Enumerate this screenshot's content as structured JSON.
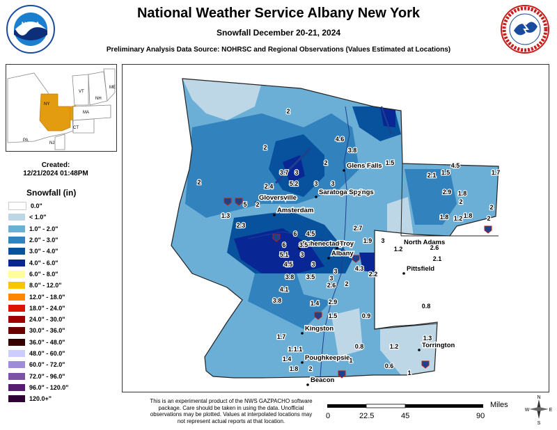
{
  "title": "National Weather Service Albany New York",
  "subtitle": "Snowfall December 20-21, 2024",
  "source": "Preliminary Analysis Data Source: NOHRSC and Regional Observations (Values Estimated at Locations)",
  "created": {
    "label": "Created:",
    "datetime": "12/21/2024 01:48PM"
  },
  "legend": {
    "title": "Snowfall (in)",
    "items": [
      {
        "label": "0.0\"",
        "color": "#ffffff"
      },
      {
        "label": "< 1.0\"",
        "color": "#bdd7e7"
      },
      {
        "label": "1.0\" - 2.0\"",
        "color": "#6baed6"
      },
      {
        "label": "2.0\" - 3.0\"",
        "color": "#3182bd"
      },
      {
        "label": "3.0\" - 4.0\"",
        "color": "#08519c"
      },
      {
        "label": "4.0\" - 6.0\"",
        "color": "#082694"
      },
      {
        "label": "6.0\" - 8.0\"",
        "color": "#ffff96"
      },
      {
        "label": "8.0\" - 12.0\"",
        "color": "#ffc400"
      },
      {
        "label": "12.0\" - 18.0\"",
        "color": "#ff8700"
      },
      {
        "label": "18.0\" - 24.0\"",
        "color": "#db1400"
      },
      {
        "label": "24.0\" - 30.0\"",
        "color": "#9e0000"
      },
      {
        "label": "30.0\" - 36.0\"",
        "color": "#690000"
      },
      {
        "label": "36.0\" - 48.0\"",
        "color": "#360000"
      },
      {
        "label": "48.0\" - 60.0\"",
        "color": "#ccccff"
      },
      {
        "label": "60.0\" - 72.0\"",
        "color": "#9f8cd8"
      },
      {
        "label": "72.0\" - 96.0\"",
        "color": "#7c52a5"
      },
      {
        "label": "96.0\" - 120.0\"",
        "color": "#561c72"
      },
      {
        "label": "120.0+\"",
        "color": "#2e0033"
      }
    ]
  },
  "inset": {
    "states": [
      "VT",
      "NH",
      "ME",
      "NY",
      "MA",
      "CT",
      "PA",
      "NJ"
    ]
  },
  "disclaimer": "This is an experimental product of the NWS GAZPACHO software package. Care should be taken in using the data. Unofficial observations may be plotted. Values at interpolated locations may not represent actual reports at that location.",
  "scale": {
    "ticks": [
      "0",
      "22.5",
      "45",
      "90"
    ],
    "unit": "Miles"
  },
  "compass": {
    "n": "N",
    "s": "S",
    "e": "E",
    "w": "W"
  },
  "cities": [
    {
      "name": "Glens Falls"
    },
    {
      "name": "Saratoga Springs"
    },
    {
      "name": "Gloversville"
    },
    {
      "name": "Amsterdam"
    },
    {
      "name": "Schenectady"
    },
    {
      "name": "Troy"
    },
    {
      "name": "Albany"
    },
    {
      "name": "North Adams"
    },
    {
      "name": "Pittsfield"
    },
    {
      "name": "Kingston"
    },
    {
      "name": "Poughkeepsie"
    },
    {
      "name": "Beacon"
    },
    {
      "name": "Torrington"
    }
  ],
  "values": [
    "2",
    "2",
    "2",
    "4.6",
    "3.8",
    "2",
    "1.5",
    "3.7",
    "3",
    "5.2",
    "3",
    "3",
    "2.4",
    "2",
    "5",
    "2",
    "1.3",
    "2.3",
    "6",
    "4.5",
    "6",
    "3.5",
    "2.7",
    "1.9",
    "3",
    "5.1",
    "3",
    "4.3",
    "4.5",
    "3",
    "3",
    "2.2",
    "3.8",
    "3.5",
    "3",
    "4.1",
    "2.6",
    "2",
    "3.8",
    "1.4",
    "2.9",
    "1.5",
    "0.9",
    "1.7",
    "1.1",
    "1.1",
    "1.4",
    "1.8",
    "2",
    "0.8",
    "1",
    "2.1",
    "4.5",
    "1.5",
    "1.7",
    "2.9",
    "1.8",
    "2",
    "1.2",
    "1.8",
    "1.8",
    "2",
    "2",
    "1.2",
    "2.6",
    "2.1",
    "1.2",
    "1.3",
    "0.6",
    "0.8",
    "1"
  ]
}
